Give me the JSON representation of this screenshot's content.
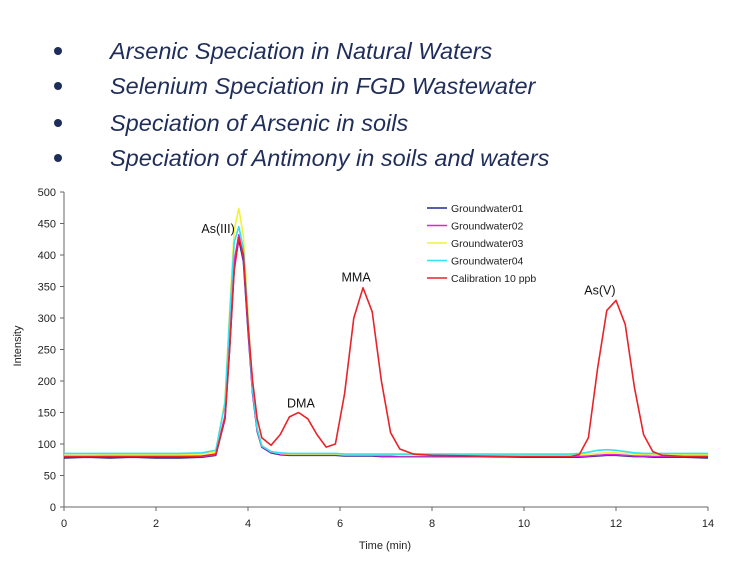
{
  "bullets": [
    "Arsenic Speciation in Natural Waters",
    "Selenium Speciation in FGD Wastewater",
    "Speciation of Arsenic in soils",
    "Speciation of Antimony in soils and waters"
  ],
  "chart_data": {
    "type": "line",
    "xlabel": "Time (min)",
    "ylabel": "Intensity",
    "xlim": [
      0,
      14
    ],
    "ylim": [
      0,
      500
    ],
    "xticks": [
      0,
      2,
      4,
      6,
      8,
      10,
      12,
      14
    ],
    "yticks": [
      0,
      50,
      100,
      150,
      200,
      250,
      300,
      350,
      400,
      450,
      500
    ],
    "grid": false,
    "legend_position": "top-right",
    "x": [
      0,
      0.5,
      1,
      1.5,
      2,
      2.5,
      3,
      3.3,
      3.5,
      3.6,
      3.7,
      3.8,
      3.9,
      4.0,
      4.1,
      4.2,
      4.3,
      4.5,
      4.7,
      4.9,
      5.1,
      5.3,
      5.5,
      5.7,
      5.9,
      6.1,
      6.3,
      6.5,
      6.7,
      6.9,
      7.1,
      7.3,
      7.6,
      8,
      9,
      10,
      10.5,
      11,
      11.2,
      11.4,
      11.6,
      11.8,
      12.0,
      12.2,
      12.4,
      12.6,
      12.8,
      13,
      13.5,
      14
    ],
    "series": [
      {
        "name": "Groundwater01",
        "color": "#1f2a8a",
        "values": [
          78,
          79,
          78,
          79,
          78,
          78,
          79,
          82,
          140,
          250,
          380,
          425,
          390,
          280,
          180,
          120,
          95,
          86,
          83,
          82,
          82,
          82,
          82,
          82,
          82,
          81,
          81,
          81,
          81,
          80,
          80,
          80,
          80,
          80,
          80,
          79,
          79,
          79,
          79,
          80,
          81,
          82,
          82,
          81,
          80,
          80,
          79,
          79,
          79,
          78
        ]
      },
      {
        "name": "Groundwater02",
        "color": "#e020e0",
        "values": [
          80,
          80,
          80,
          80,
          80,
          80,
          80,
          83,
          145,
          260,
          390,
          432,
          395,
          285,
          182,
          122,
          96,
          87,
          84,
          83,
          83,
          83,
          83,
          83,
          83,
          82,
          82,
          82,
          82,
          81,
          81,
          81,
          81,
          81,
          81,
          80,
          80,
          80,
          80,
          81,
          82,
          83,
          83,
          82,
          81,
          81,
          80,
          80,
          80,
          80
        ]
      },
      {
        "name": "Groundwater03",
        "color": "#f2f23a",
        "values": [
          82,
          82,
          83,
          83,
          83,
          83,
          84,
          87,
          170,
          310,
          440,
          474,
          430,
          305,
          190,
          125,
          98,
          88,
          85,
          84,
          84,
          84,
          84,
          84,
          84,
          83,
          83,
          83,
          83,
          83,
          83,
          82,
          82,
          82,
          82,
          82,
          82,
          82,
          83,
          84,
          85,
          86,
          86,
          85,
          84,
          83,
          83,
          83,
          83,
          83
        ]
      },
      {
        "name": "Groundwater04",
        "color": "#36e0f0",
        "values": [
          85,
          85,
          85,
          85,
          85,
          85,
          86,
          90,
          165,
          300,
          420,
          445,
          410,
          295,
          186,
          124,
          97,
          88,
          86,
          85,
          85,
          85,
          85,
          85,
          85,
          84,
          84,
          84,
          84,
          84,
          84,
          84,
          84,
          84,
          84,
          84,
          84,
          84,
          85,
          87,
          90,
          91,
          90,
          88,
          86,
          85,
          85,
          85,
          85,
          85
        ]
      },
      {
        "name": "Calibration 10 ppb",
        "color": "#e8232a",
        "values": [
          80,
          80,
          80,
          80,
          80,
          80,
          81,
          84,
          140,
          250,
          375,
          428,
          400,
          290,
          200,
          140,
          110,
          98,
          115,
          143,
          150,
          140,
          115,
          95,
          100,
          180,
          300,
          348,
          310,
          200,
          118,
          92,
          84,
          82,
          81,
          80,
          80,
          80,
          83,
          110,
          220,
          312,
          328,
          290,
          190,
          115,
          88,
          82,
          80,
          80
        ]
      }
    ],
    "annotations": [
      {
        "text": "As(III)",
        "x": 3.35,
        "y": 435
      },
      {
        "text": "DMA",
        "x": 5.15,
        "y": 158
      },
      {
        "text": "MMA",
        "x": 6.35,
        "y": 358
      },
      {
        "text": "As(V)",
        "x": 11.65,
        "y": 337
      }
    ]
  }
}
